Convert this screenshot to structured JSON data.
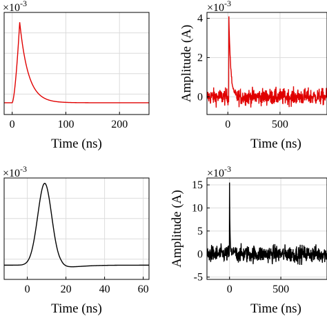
{
  "chart_data": [
    {
      "id": "tl",
      "type": "line",
      "color": "#e00000",
      "xlabel": "Time (ns)",
      "ylabel": "",
      "exponent": "×10",
      "exponent_power": "-3",
      "xlim": [
        -15,
        255
      ],
      "ylim": [
        -0.6,
        4.6
      ],
      "xticks": [
        0,
        100,
        200
      ],
      "yticks": [],
      "grid": true,
      "series": [
        {
          "name": "",
          "shape": "pulse",
          "t0": 0,
          "peak_t": 14,
          "peak": 4.1,
          "rise": 9,
          "decay": 16
        }
      ]
    },
    {
      "id": "tr",
      "type": "line",
      "color": "#e00000",
      "xlabel": "Time (ns)",
      "ylabel": "Amplitude (A)",
      "exponent": "×10",
      "exponent_power": "-3",
      "xlim": [
        -200,
        950
      ],
      "ylim": [
        -0.9,
        4.3
      ],
      "xticks": [
        0,
        500
      ],
      "yticks": [
        0,
        2,
        4
      ],
      "grid": true,
      "series": [
        {
          "name": "",
          "shape": "spike_noise",
          "spike_t": 10,
          "spike_peak": 4.1,
          "decay": 18,
          "noise": 0.4
        }
      ]
    },
    {
      "id": "bl",
      "type": "line",
      "color": "#000000",
      "xlabel": "Time (ns)",
      "ylabel": "",
      "exponent": "×10",
      "exponent_power": "-3",
      "xlim": [
        -12,
        63
      ],
      "ylim": [
        -0.8,
        4.9
      ],
      "xticks": [
        0,
        20,
        40,
        60
      ],
      "yticks": [],
      "grid": true,
      "series": [
        {
          "name": "",
          "shape": "gauss",
          "center": 9,
          "sigma": 3.6,
          "peak": 4.6,
          "undershoot": -0.15
        }
      ]
    },
    {
      "id": "br",
      "type": "line",
      "color": "#000000",
      "xlabel": "Time (ns)",
      "ylabel": "Amplitude (A)",
      "exponent": "×10",
      "exponent_power": "-3",
      "xlim": [
        -220,
        950
      ],
      "ylim": [
        -5.5,
        16.5
      ],
      "xticks": [
        0,
        500
      ],
      "yticks": [
        -5,
        0,
        5,
        10,
        15
      ],
      "grid": true,
      "series": [
        {
          "name": "",
          "shape": "spike_noise",
          "spike_t": 0,
          "spike_peak": 15.5,
          "decay": 4,
          "noise": 1.8
        }
      ]
    }
  ]
}
